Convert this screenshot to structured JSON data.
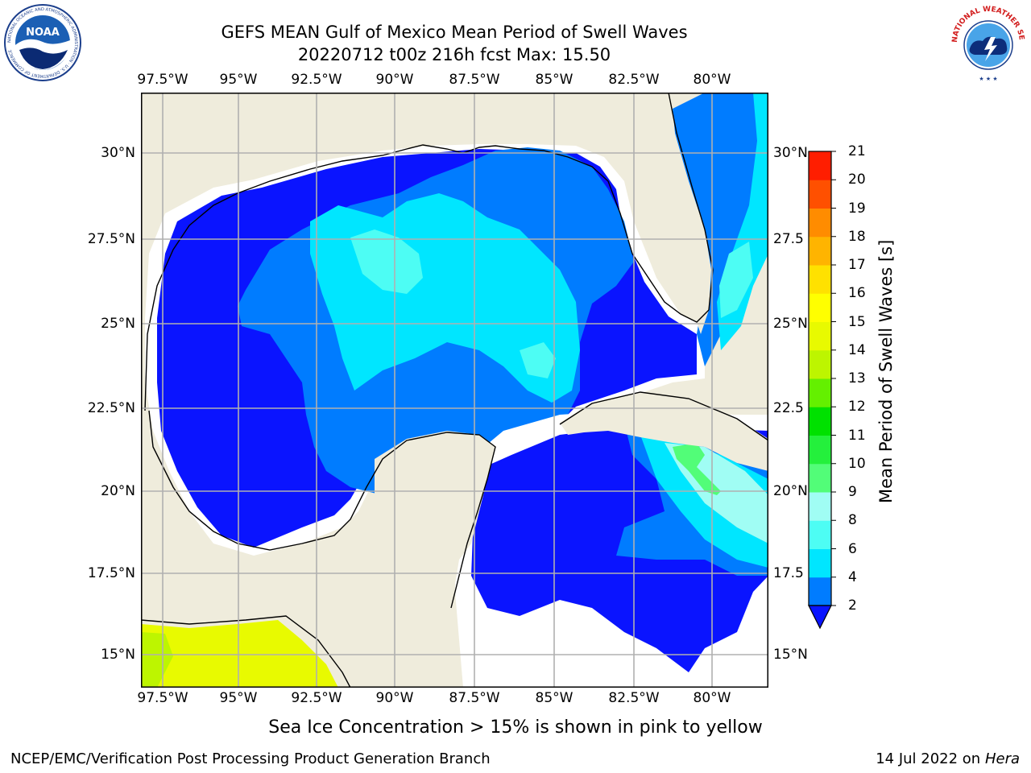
{
  "header": {
    "title_line1": "GEFS MEAN Gulf of Mexico Mean Period of Swell Waves",
    "title_line2": "20220712 t00z 216h fcst   Max: 15.50"
  },
  "logos": {
    "left": {
      "icon": "noaa-logo-icon",
      "text": "NOAA",
      "ring_text": "NATIONAL OCEANIC AND ATMOSPHERIC ADMINISTRATION · U.S. DEPARTMENT OF COMMERCE"
    },
    "right": {
      "icon": "nws-logo-icon",
      "ring_text": "NATIONAL WEATHER SERVICE"
    }
  },
  "map": {
    "lon_ticks": [
      "97.5°W",
      "95°W",
      "92.5°W",
      "90°W",
      "87.5°W",
      "85°W",
      "82.5°W",
      "80°W"
    ],
    "lat_ticks_left": [
      "30°N",
      "27.5°N",
      "25°N",
      "22.5°N",
      "20°N",
      "17.5°N",
      "15°N"
    ],
    "lat_ticks_right": [
      "30°N",
      "27.5",
      "25°N",
      "22.5",
      "20°N",
      "17.5",
      "15°N"
    ],
    "colors": {
      "land": "#efecdc",
      "ocean_none": "#ffffff",
      "grid": "#b0b0b0"
    }
  },
  "colorbar": {
    "label": "Mean Period of Swell Waves [s]",
    "ticks": [
      "2",
      "4",
      "6",
      "8",
      "9",
      "10",
      "11",
      "12",
      "13",
      "14",
      "15",
      "16",
      "17",
      "18",
      "19",
      "20",
      "21"
    ],
    "colors": [
      "#0a14ff",
      "#007cff",
      "#00e6ff",
      "#4dfdf4",
      "#a0fdf4",
      "#52fd78",
      "#24f03c",
      "#00e100",
      "#64f000",
      "#bdf500",
      "#e8fa00",
      "#ffff00",
      "#ffe100",
      "#ffb400",
      "#ff8c00",
      "#ff5000",
      "#ff1e00",
      "#ff0000"
    ]
  },
  "note": "Sea Ice Concentration > 15% is shown in pink to yellow",
  "footer": {
    "left": "NCEP/EMC/Verification Post Processing Product Generation Branch",
    "right_date": "14 Jul 2022 on ",
    "right_host": "Hera"
  }
}
